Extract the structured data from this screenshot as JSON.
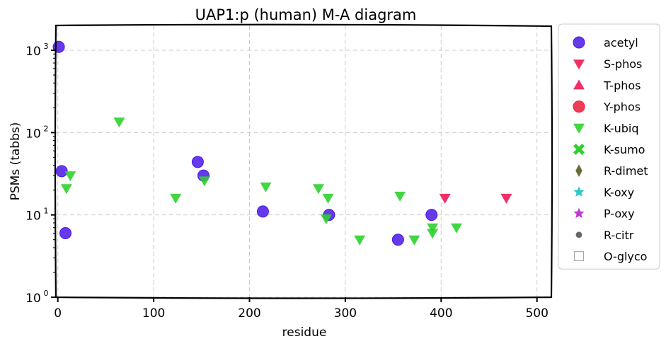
{
  "chart_data": {
    "type": "scatter",
    "title": "UAP1:p (human) M-A diagram",
    "xlabel": "residue",
    "ylabel": "PSMs (tabbs)",
    "xlim": [
      -2,
      515
    ],
    "ylim": [
      1,
      2000
    ],
    "yscale": "log",
    "xticks": [
      "0",
      "100",
      "200",
      "300",
      "400",
      "500"
    ],
    "yticks": [
      "10",
      "10",
      "10",
      "10"
    ],
    "ytick_exponents": [
      "0",
      "1",
      "2",
      "3"
    ],
    "grid": true,
    "legend_position": "outside-right",
    "series": [
      {
        "name": "acetyl",
        "marker": "circle",
        "color": "#4b18e8",
        "points": [
          [
            1,
            1100
          ],
          [
            4,
            34
          ],
          [
            8,
            6
          ],
          [
            146,
            44
          ],
          [
            152,
            30
          ],
          [
            214,
            11
          ],
          [
            283,
            10
          ],
          [
            355,
            5
          ],
          [
            390,
            10
          ]
        ]
      },
      {
        "name": "S-phos",
        "marker": "triangle-down",
        "color": "#ee1a55",
        "points": [
          [
            404,
            16
          ],
          [
            468,
            16
          ]
        ]
      },
      {
        "name": "T-phos",
        "marker": "triangle-up",
        "color": "#ee1a55",
        "points": []
      },
      {
        "name": "Y-phos",
        "marker": "circle",
        "color": "#ee1a3a",
        "points": []
      },
      {
        "name": "K-ubiq",
        "marker": "triangle-down",
        "color": "#2ed12e",
        "points": [
          [
            9,
            21
          ],
          [
            13,
            30
          ],
          [
            64,
            135
          ],
          [
            123,
            16
          ],
          [
            153,
            26
          ],
          [
            217,
            22
          ],
          [
            272,
            21
          ],
          [
            282,
            16
          ],
          [
            280,
            9
          ],
          [
            315,
            5
          ],
          [
            357,
            17
          ],
          [
            372,
            5
          ],
          [
            391,
            6
          ],
          [
            391,
            7
          ],
          [
            416,
            7
          ]
        ]
      },
      {
        "name": "K-sumo",
        "marker": "x",
        "color": "#2ed12e",
        "points": []
      },
      {
        "name": "R-dimet",
        "marker": "diamond",
        "color": "#6b6b3a",
        "points": []
      },
      {
        "name": "K-oxy",
        "marker": "star",
        "color": "#2ec8c8",
        "points": []
      },
      {
        "name": "P-oxy",
        "marker": "star",
        "color": "#c03ad0",
        "points": []
      },
      {
        "name": "R-citr",
        "marker": "small-circle",
        "color": "#666666",
        "points": []
      },
      {
        "name": "O-glyco",
        "marker": "square-open",
        "color": "#aaaaaa",
        "points": []
      }
    ]
  }
}
